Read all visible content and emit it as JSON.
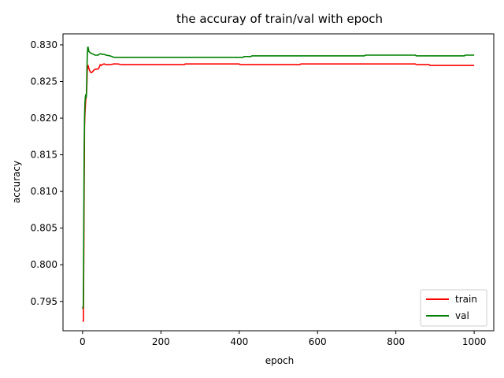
{
  "chart_data": {
    "type": "line",
    "title": "the accuray of train/val with epoch",
    "xlabel": "epoch",
    "ylabel": "accuracy",
    "xlim": [
      -50,
      1050
    ],
    "ylim": [
      0.791,
      0.8315
    ],
    "xticks": [
      0,
      200,
      400,
      600,
      800,
      1000
    ],
    "yticks": [
      0.795,
      0.8,
      0.805,
      0.81,
      0.815,
      0.82,
      0.825,
      0.83
    ],
    "ytick_labels": [
      "0.795",
      "0.800",
      "0.805",
      "0.810",
      "0.815",
      "0.820",
      "0.825",
      "0.830"
    ],
    "xtick_labels": [
      "0",
      "200",
      "400",
      "600",
      "800",
      "1000"
    ],
    "grid": false,
    "legend_position": "lower-right",
    "series": [
      {
        "name": "train",
        "color": "#ff0000",
        "points": [
          [
            0,
            0.7923
          ],
          [
            2,
            0.7923
          ],
          [
            3,
            0.8
          ],
          [
            4,
            0.81
          ],
          [
            5,
            0.819
          ],
          [
            6,
            0.8205
          ],
          [
            7,
            0.8215
          ],
          [
            8,
            0.8225
          ],
          [
            9,
            0.8228
          ],
          [
            10,
            0.8235
          ],
          [
            11,
            0.8245
          ],
          [
            12,
            0.8265
          ],
          [
            13,
            0.827
          ],
          [
            14,
            0.8272
          ],
          [
            15,
            0.827
          ],
          [
            16,
            0.8268
          ],
          [
            18,
            0.8265
          ],
          [
            20,
            0.8263
          ],
          [
            22,
            0.8262
          ],
          [
            25,
            0.8263
          ],
          [
            28,
            0.8265
          ],
          [
            30,
            0.8266
          ],
          [
            35,
            0.8267
          ],
          [
            40,
            0.8267
          ],
          [
            43,
            0.827
          ],
          [
            45,
            0.8273
          ],
          [
            48,
            0.8272
          ],
          [
            50,
            0.8273
          ],
          [
            55,
            0.8274
          ],
          [
            60,
            0.8273
          ],
          [
            70,
            0.8273
          ],
          [
            80,
            0.8274
          ],
          [
            90,
            0.8274
          ],
          [
            100,
            0.8273
          ],
          [
            260,
            0.8273
          ],
          [
            262,
            0.8274
          ],
          [
            400,
            0.8274
          ],
          [
            402,
            0.8273
          ],
          [
            555,
            0.8273
          ],
          [
            557,
            0.8274
          ],
          [
            850,
            0.8274
          ],
          [
            852,
            0.8273
          ],
          [
            885,
            0.8273
          ],
          [
            887,
            0.8272
          ],
          [
            1000,
            0.8272
          ]
        ]
      },
      {
        "name": "val",
        "color": "#008000",
        "points": [
          [
            0,
            0.794
          ],
          [
            2,
            0.7945
          ],
          [
            3,
            0.805
          ],
          [
            4,
            0.815
          ],
          [
            5,
            0.82
          ],
          [
            6,
            0.822
          ],
          [
            7,
            0.8228
          ],
          [
            8,
            0.8232
          ],
          [
            9,
            0.8228
          ],
          [
            10,
            0.8232
          ],
          [
            11,
            0.8265
          ],
          [
            12,
            0.8285
          ],
          [
            13,
            0.8296
          ],
          [
            14,
            0.8297
          ],
          [
            15,
            0.8294
          ],
          [
            16,
            0.8291
          ],
          [
            18,
            0.829
          ],
          [
            20,
            0.8289
          ],
          [
            24,
            0.8288
          ],
          [
            28,
            0.8287
          ],
          [
            32,
            0.8286
          ],
          [
            36,
            0.8286
          ],
          [
            40,
            0.8286
          ],
          [
            42,
            0.8287
          ],
          [
            45,
            0.8288
          ],
          [
            50,
            0.8287
          ],
          [
            55,
            0.8287
          ],
          [
            60,
            0.8286
          ],
          [
            70,
            0.8285
          ],
          [
            80,
            0.8283
          ],
          [
            100,
            0.8283
          ],
          [
            410,
            0.8283
          ],
          [
            412,
            0.8284
          ],
          [
            430,
            0.8284
          ],
          [
            432,
            0.8285
          ],
          [
            720,
            0.8285
          ],
          [
            722,
            0.8286
          ],
          [
            850,
            0.8286
          ],
          [
            852,
            0.8285
          ],
          [
            975,
            0.8285
          ],
          [
            977,
            0.8286
          ],
          [
            1000,
            0.8286
          ]
        ]
      }
    ]
  }
}
